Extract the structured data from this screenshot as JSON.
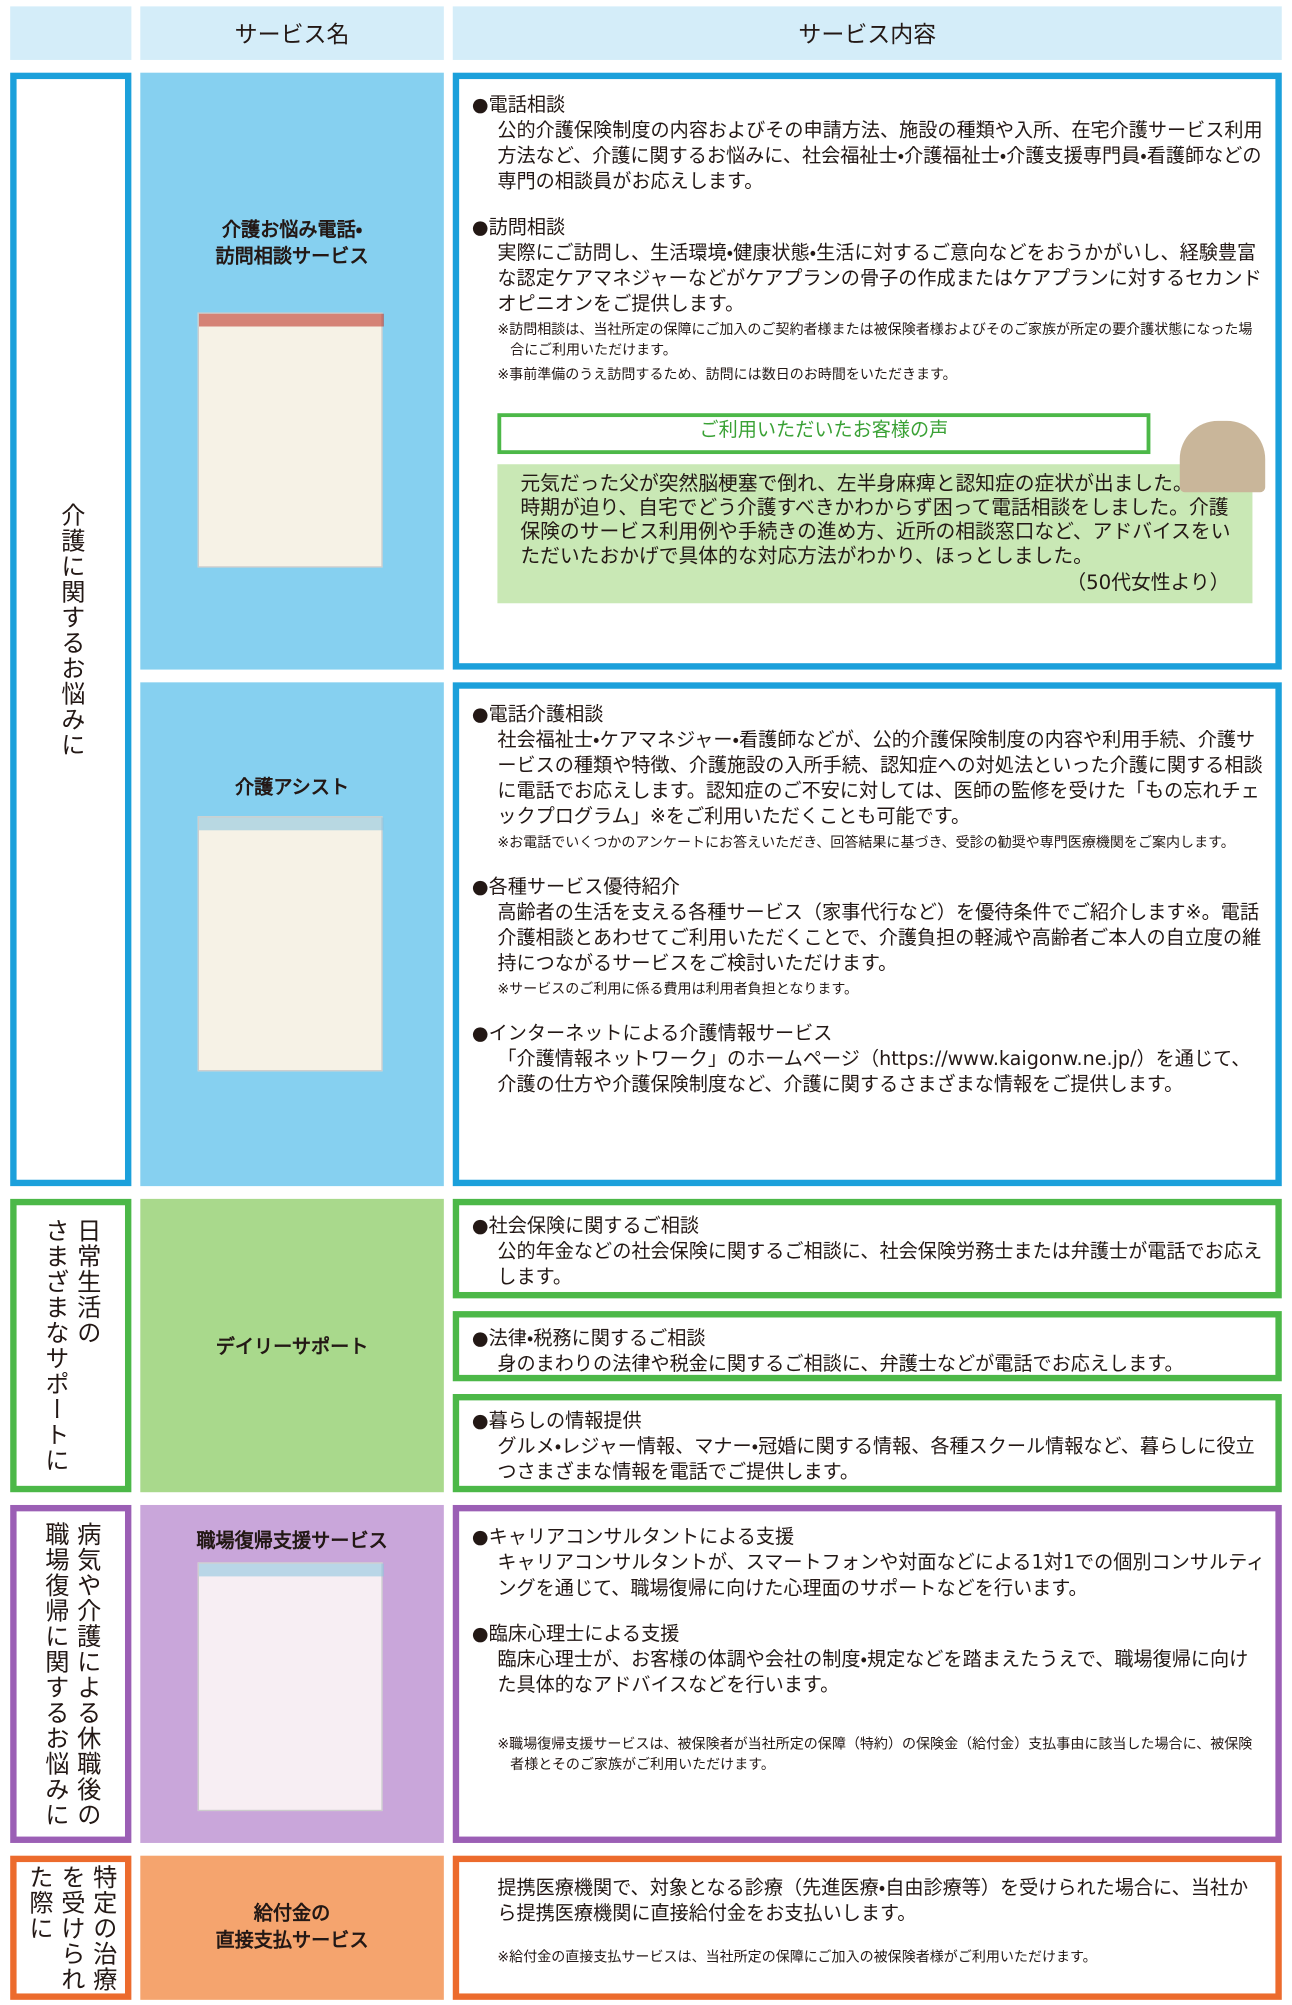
{
  "header": {
    "service_name": "サービス名",
    "service_content": "サービス内容"
  },
  "sections": [
    {
      "label_lines": [
        "介護に関するお悩みに"
      ],
      "services": [
        {
          "name_lines": [
            "介護お悩み電話・",
            "訪問相談サービス"
          ],
          "items": [
            {
              "heading": "●電話相談",
              "body": "公的介護保険制度の内容およびその申請方法、施設の種類や入所、在宅介護サービス利用方法など、介護に関するお悩みに、社会福祉士・介護福祉士・介護支援専門員・看護師などの専門の相談員がお応えします。"
            },
            {
              "heading": "●訪問相談",
              "body": "実際にご訪問し、生活環境・健康状態・生活に対するご意向などをおうかがいし、経験豊富な認定ケアマネジャーなどがケアプランの骨子の作成またはケアプランに対するセカンドオピニオンをご提供します。",
              "notes": [
                "※訪問相談は、当社所定の保障にご加入のご契約者様または被保険者様およびそのご家族が所定の要介護状態になった場合にご利用いただけます。",
                "※事前準備のうえ訪問するため、訪問には数日のお時間をいただきます。"
              ]
            }
          ],
          "voice": {
            "title": "ご利用いただいたお客様の声",
            "text": "元気だった父が突然脳梗塞で倒れ、左半身麻痺と認知症の症状が出ました。退院時期が迫り、自宅でどう介護すべきかわからず困って電話相談をしました。介護保険のサービス利用例や手続きの進め方、近所の相談窓口など、アドバイスをいただいたおかげで具体的な対応方法がわかり、ほっとしました。",
            "source": "（50代女性より）"
          }
        },
        {
          "name_lines": [
            "介護アシスト"
          ],
          "items": [
            {
              "heading": "●電話介護相談",
              "body": "社会福祉士・ケアマネジャー・看護師などが、公的介護保険制度の内容や利用手続、介護サービスの種類や特徴、介護施設の入所手続、認知症への対処法といった介護に関する相談に電話でお応えします。認知症のご不安に対しては、医師の監修を受けた「もの忘れチェックプログラム」※をご利用いただくことも可能です。",
              "notes": [
                "※お電話でいくつかのアンケートにお答えいただき、回答結果に基づき、受診の勧奨や専門医療機関をご案内します。"
              ]
            },
            {
              "heading": "●各種サービス優待紹介",
              "body": "高齢者の生活を支える各種サービス（家事代行など）を優待条件でご紹介します※。電話介護相談とあわせてご利用いただくことで、介護負担の軽減や高齢者ご本人の自立度の維持につながるサービスをご検討いただけます。",
              "notes": [
                "※サービスのご利用に係る費用は利用者負担となります。"
              ]
            },
            {
              "heading": "●インターネットによる介護情報サービス",
              "body": "「介護情報ネットワーク」のホームページ（https://www.kaigonw.ne.jp/）を通じて、介護の仕方や介護保険制度など、介護に関するさまざまな情報をご提供します。"
            }
          ]
        }
      ]
    },
    {
      "label_lines": [
        "日常生活の",
        "さまざまなサポートに"
      ],
      "services": [
        {
          "name_lines": [
            "デイリーサポート"
          ],
          "items": [
            {
              "heading": "●社会保険に関するご相談",
              "body": "公的年金などの社会保険に関するご相談に、社会保険労務士または弁護士が電話でお応えします。"
            },
            {
              "heading": "●法律・税務に関するご相談",
              "body": "身のまわりの法律や税金に関するご相談に、弁護士などが電話でお応えします。"
            },
            {
              "heading": "●暮らしの情報提供",
              "body": "グルメ・レジャー情報、マナー・冠婚に関する情報、各種スクール情報など、暮らしに役立つさまざまな情報を電話でご提供します。"
            }
          ]
        }
      ]
    },
    {
      "label_lines": [
        "病気や介護による休職後の",
        "職場復帰に関するお悩みに"
      ],
      "services": [
        {
          "name_lines": [
            "職場復帰支援サービス"
          ],
          "items": [
            {
              "heading": "●キャリアコンサルタントによる支援",
              "body": "キャリアコンサルタントが、スマートフォンや対面などによる1対1での個別コンサルティングを通じて、職場復帰に向けた心理面のサポートなどを行います。"
            },
            {
              "heading": "●臨床心理士による支援",
              "body": "臨床心理士が、お客様の体調や会社の制度・規定などを踏まえたうえで、職場復帰に向けた具体的なアドバイスなどを行います。"
            }
          ],
          "notes": [
            "※職場復帰支援サービスは、被保険者が当社所定の保障（特約）の保険金（給付金）支払事由に該当した場合に、被保険者様とそのご家族がご利用いただけます。"
          ]
        }
      ]
    },
    {
      "label_lines": [
        "特定の治療",
        "を受けられ",
        "た際に"
      ],
      "services": [
        {
          "name_lines": [
            "給付金の",
            "直接支払サービス"
          ],
          "items": [
            {
              "body": "提携医療機関で、対象となる診療（先進医療・自由診療等）を受けられた場合に、当社から提携医療機関に直接給付金をお支払いします。"
            }
          ],
          "notes": [
            "※給付金の直接支払サービスは、当社所定の保障にご加入の被保険者様がご利用いただけます。"
          ]
        }
      ]
    }
  ]
}
